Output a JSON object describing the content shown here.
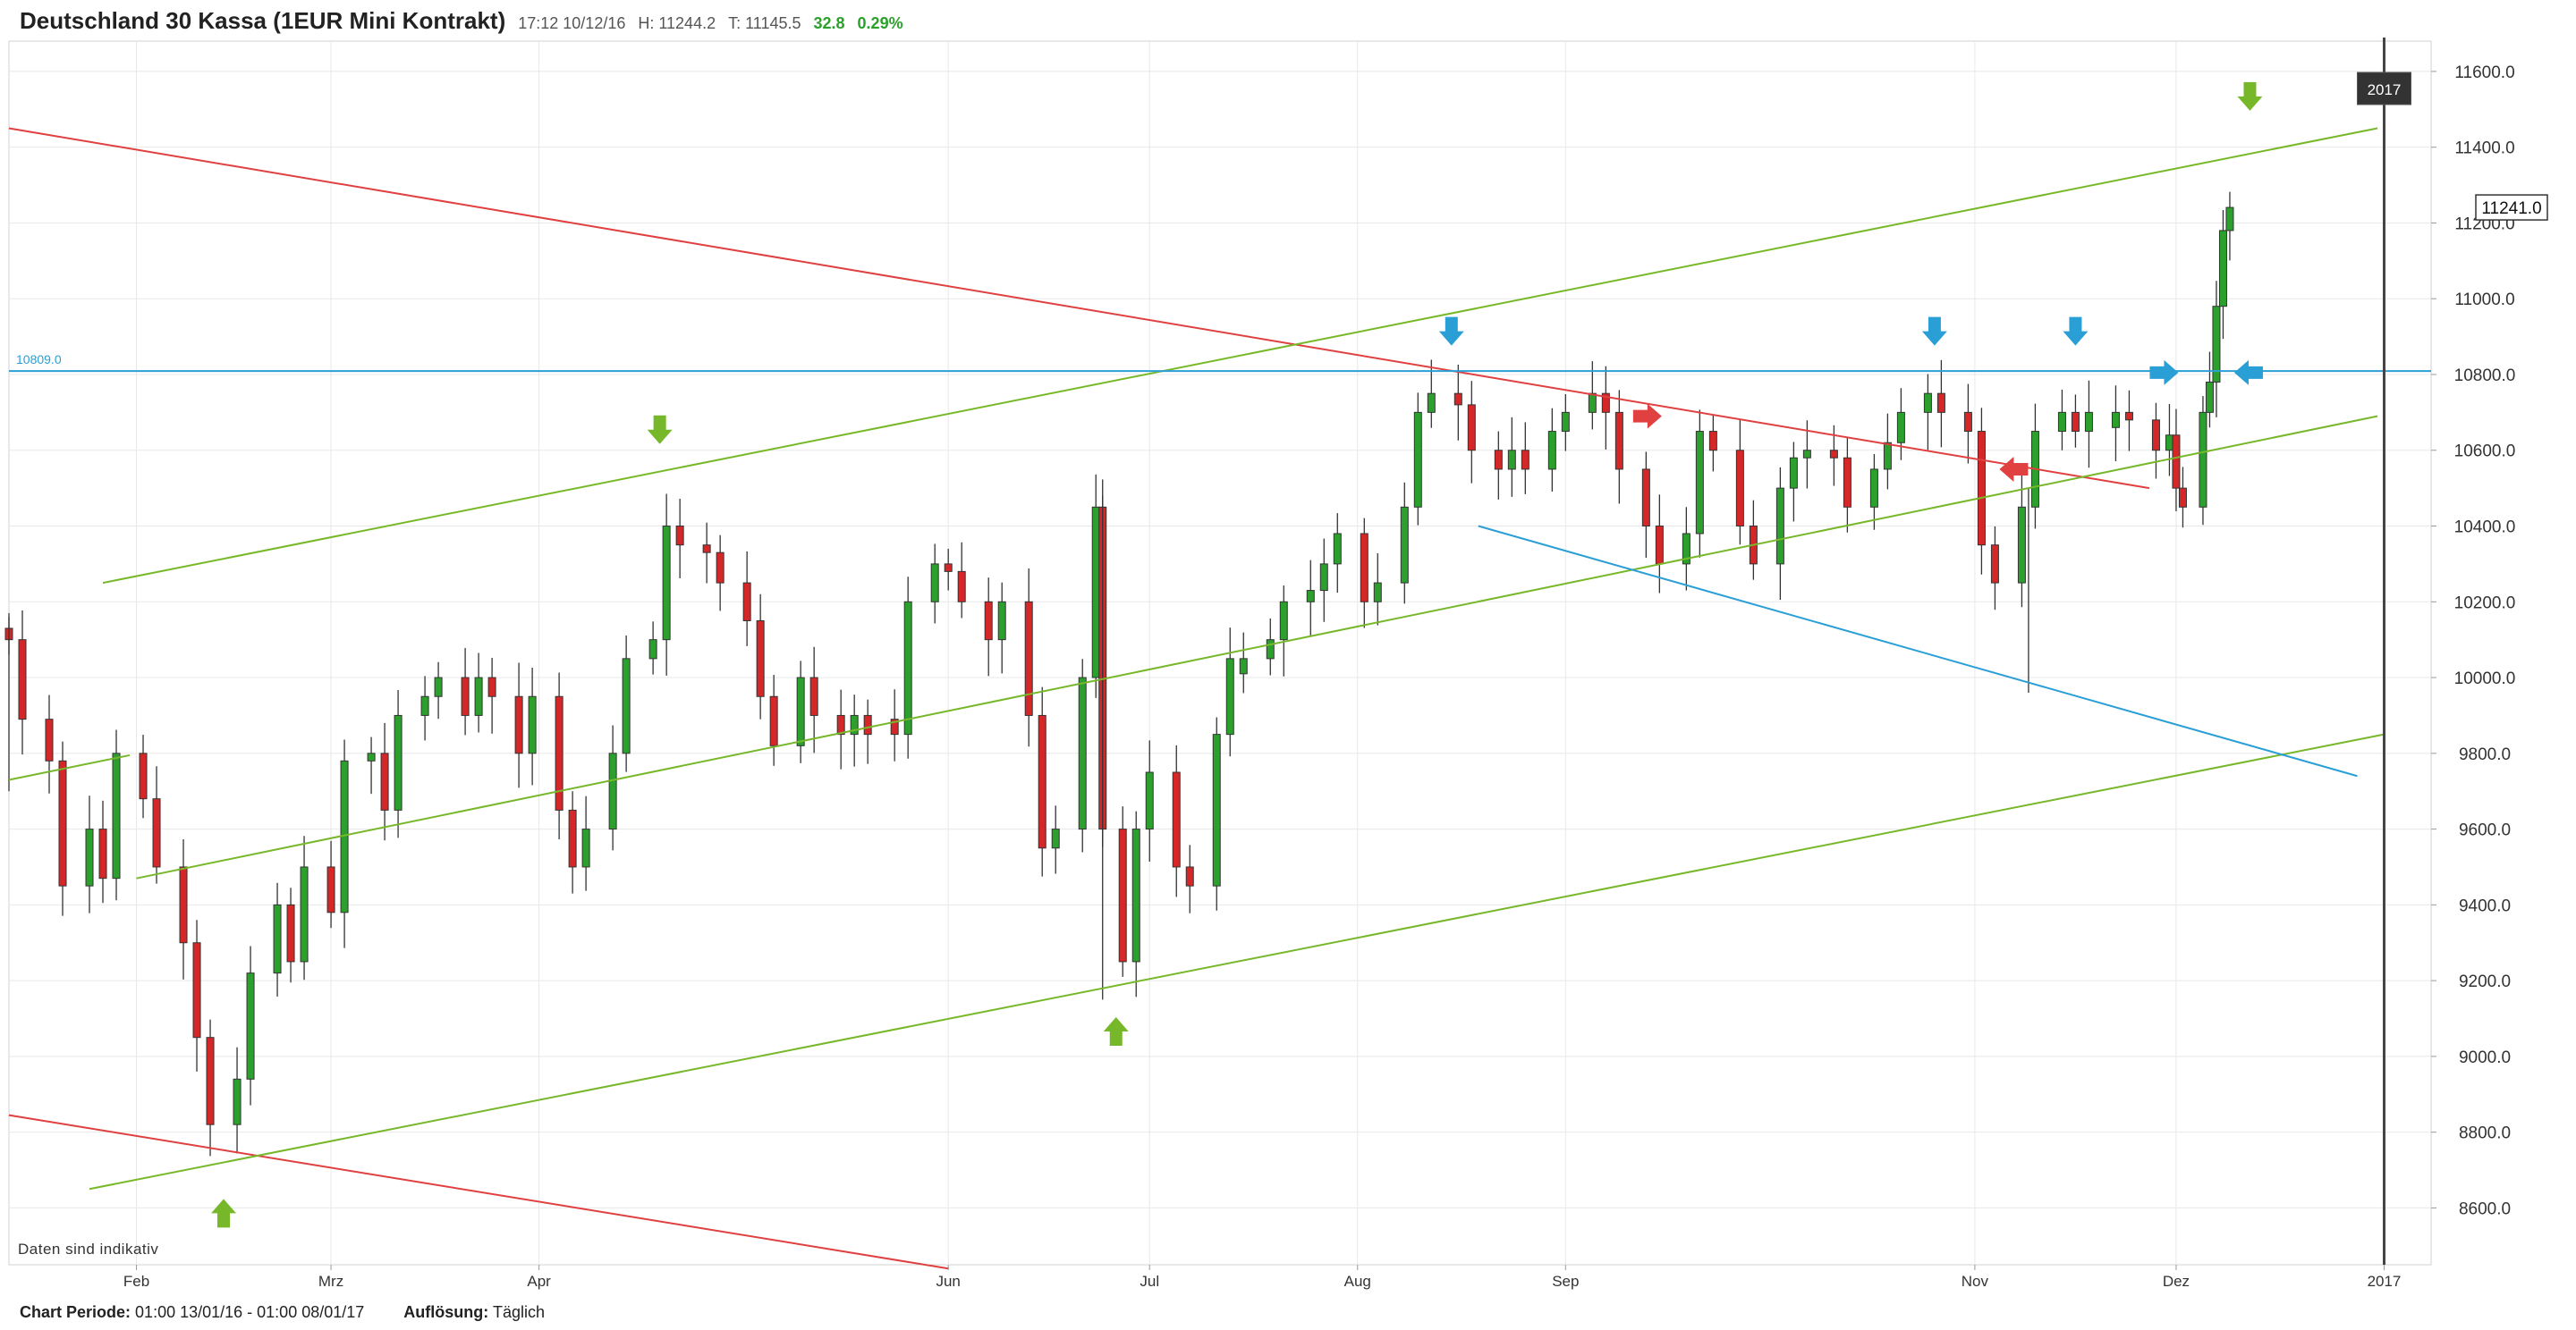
{
  "header": {
    "title": "Deutschland 30 Kassa (1EUR Mini Kontrakt)",
    "time": "17:12 10/12/16",
    "high": "H: 11244.2",
    "low": "T: 11145.5",
    "change_abs": "32.8",
    "change_pct": "0.29%"
  },
  "footer": {
    "period_label": "Chart Periode:",
    "period_value": "01:00 13/01/16 - 01:00 08/01/17",
    "resolution_label": "Auflösung:",
    "resolution_value": "Täglich"
  },
  "note": "Daten sind indikativ",
  "colors": {
    "up": "#2ca02c",
    "down": "#d62728",
    "green_line": "#77b82a",
    "red_line": "#e04040",
    "blue_line": "#2a9fd6",
    "grid": "#e8e8e8"
  },
  "chart_data": {
    "type": "candlestick",
    "title": "Deutschland 30 Kassa (1EUR Mini Kontrakt)",
    "ylim": [
      8450,
      11680
    ],
    "y_ticks": [
      "8600.0",
      "8800.0",
      "9000.0",
      "9200.0",
      "9400.0",
      "9600.0",
      "9800.0",
      "10000.0",
      "10200.0",
      "10400.0",
      "10600.0",
      "10800.0",
      "11000.0",
      "11200.0",
      "11400.0",
      "11600.0"
    ],
    "x_tick_labels": [
      "Feb",
      "Mrz",
      "Apr",
      "Jun",
      "Jul",
      "Aug",
      "Sep",
      "Nov",
      "Dez",
      "2017"
    ],
    "x_ticks": [
      "2016-02-01",
      "2016-03-01",
      "2016-04-01",
      "2016-06-01",
      "2016-07-01",
      "2016-08-01",
      "2016-09-01",
      "2016-11-01",
      "2016-12-01",
      "2017-01-01"
    ],
    "xlim": [
      "2016-01-13",
      "2017-01-08"
    ],
    "last_price_label": "11241.0",
    "hline": {
      "value": 10809,
      "label": "10809.0"
    },
    "year_marker": {
      "date": "2017-01-01",
      "label": "2017"
    },
    "closes": [
      [
        "2016-01-13",
        10100
      ],
      [
        "2016-01-15",
        9890
      ],
      [
        "2016-01-19",
        9780
      ],
      [
        "2016-01-21",
        9450
      ],
      [
        "2016-01-25",
        9600
      ],
      [
        "2016-01-27",
        9470
      ],
      [
        "2016-01-29",
        9800
      ],
      [
        "2016-02-02",
        9680
      ],
      [
        "2016-02-04",
        9500
      ],
      [
        "2016-02-08",
        9300
      ],
      [
        "2016-02-10",
        9050
      ],
      [
        "2016-02-12",
        8820
      ],
      [
        "2016-02-16",
        8940
      ],
      [
        "2016-02-18",
        9220
      ],
      [
        "2016-02-22",
        9400
      ],
      [
        "2016-02-24",
        9250
      ],
      [
        "2016-02-26",
        9500
      ],
      [
        "2016-03-01",
        9380
      ],
      [
        "2016-03-03",
        9780
      ],
      [
        "2016-03-07",
        9800
      ],
      [
        "2016-03-09",
        9650
      ],
      [
        "2016-03-11",
        9900
      ],
      [
        "2016-03-15",
        9950
      ],
      [
        "2016-03-17",
        10000
      ],
      [
        "2016-03-21",
        9900
      ],
      [
        "2016-03-23",
        10000
      ],
      [
        "2016-03-25",
        9950
      ],
      [
        "2016-03-29",
        9800
      ],
      [
        "2016-03-31",
        9950
      ],
      [
        "2016-04-04",
        9650
      ],
      [
        "2016-04-06",
        9500
      ],
      [
        "2016-04-08",
        9600
      ],
      [
        "2016-04-12",
        9800
      ],
      [
        "2016-04-14",
        10050
      ],
      [
        "2016-04-18",
        10100
      ],
      [
        "2016-04-20",
        10400
      ],
      [
        "2016-04-22",
        10350
      ],
      [
        "2016-04-26",
        10330
      ],
      [
        "2016-04-28",
        10250
      ],
      [
        "2016-05-02",
        10150
      ],
      [
        "2016-05-04",
        9950
      ],
      [
        "2016-05-06",
        9820
      ],
      [
        "2016-05-10",
        10000
      ],
      [
        "2016-05-12",
        9900
      ],
      [
        "2016-05-16",
        9850
      ],
      [
        "2016-05-18",
        9900
      ],
      [
        "2016-05-20",
        9850
      ],
      [
        "2016-05-24",
        9850
      ],
      [
        "2016-05-26",
        10200
      ],
      [
        "2016-05-30",
        10300
      ],
      [
        "2016-06-01",
        10280
      ],
      [
        "2016-06-03",
        10200
      ],
      [
        "2016-06-07",
        10100
      ],
      [
        "2016-06-09",
        10200
      ],
      [
        "2016-06-13",
        9900
      ],
      [
        "2016-06-15",
        9550
      ],
      [
        "2016-06-17",
        9600
      ],
      [
        "2016-06-21",
        10000
      ],
      [
        "2016-06-23",
        10450
      ],
      [
        "2016-06-24",
        9600
      ],
      [
        "2016-06-27",
        9250
      ],
      [
        "2016-06-29",
        9600
      ],
      [
        "2016-07-01",
        9750
      ],
      [
        "2016-07-05",
        9500
      ],
      [
        "2016-07-07",
        9450
      ],
      [
        "2016-07-11",
        9850
      ],
      [
        "2016-07-13",
        10050
      ],
      [
        "2016-07-15",
        10050
      ],
      [
        "2016-07-19",
        10100
      ],
      [
        "2016-07-21",
        10200
      ],
      [
        "2016-07-25",
        10230
      ],
      [
        "2016-07-27",
        10300
      ],
      [
        "2016-07-29",
        10380
      ],
      [
        "2016-08-02",
        10200
      ],
      [
        "2016-08-04",
        10250
      ],
      [
        "2016-08-08",
        10450
      ],
      [
        "2016-08-10",
        10700
      ],
      [
        "2016-08-12",
        10750
      ],
      [
        "2016-08-16",
        10720
      ],
      [
        "2016-08-18",
        10600
      ],
      [
        "2016-08-22",
        10550
      ],
      [
        "2016-08-24",
        10600
      ],
      [
        "2016-08-26",
        10550
      ],
      [
        "2016-08-30",
        10650
      ],
      [
        "2016-09-01",
        10700
      ],
      [
        "2016-09-05",
        10750
      ],
      [
        "2016-09-07",
        10700
      ],
      [
        "2016-09-09",
        10550
      ],
      [
        "2016-09-13",
        10400
      ],
      [
        "2016-09-15",
        10300
      ],
      [
        "2016-09-19",
        10380
      ],
      [
        "2016-09-21",
        10650
      ],
      [
        "2016-09-23",
        10600
      ],
      [
        "2016-09-27",
        10400
      ],
      [
        "2016-09-29",
        10300
      ],
      [
        "2016-10-03",
        10500
      ],
      [
        "2016-10-05",
        10580
      ],
      [
        "2016-10-07",
        10600
      ],
      [
        "2016-10-11",
        10580
      ],
      [
        "2016-10-13",
        10450
      ],
      [
        "2016-10-17",
        10550
      ],
      [
        "2016-10-19",
        10620
      ],
      [
        "2016-10-21",
        10700
      ],
      [
        "2016-10-25",
        10750
      ],
      [
        "2016-10-27",
        10700
      ],
      [
        "2016-10-31",
        10650
      ],
      [
        "2016-11-02",
        10350
      ],
      [
        "2016-11-04",
        10250
      ],
      [
        "2016-11-08",
        10450
      ],
      [
        "2016-11-10",
        10650
      ],
      [
        "2016-11-14",
        10700
      ],
      [
        "2016-11-16",
        10650
      ],
      [
        "2016-11-18",
        10700
      ],
      [
        "2016-11-22",
        10700
      ],
      [
        "2016-11-24",
        10680
      ],
      [
        "2016-11-28",
        10600
      ],
      [
        "2016-11-30",
        10640
      ],
      [
        "2016-12-01",
        10500
      ],
      [
        "2016-12-02",
        10450
      ],
      [
        "2016-12-05",
        10700
      ],
      [
        "2016-12-06",
        10780
      ],
      [
        "2016-12-07",
        10980
      ],
      [
        "2016-12-08",
        11180
      ],
      [
        "2016-12-09",
        11241
      ]
    ],
    "trend_lines": [
      {
        "color": "red",
        "from": [
          "2016-01-13",
          11450
        ],
        "to": [
          "2016-11-27",
          10500
        ]
      },
      {
        "color": "red",
        "from": [
          "2016-01-13",
          8845
        ],
        "to": [
          "2016-06-01",
          8440
        ]
      },
      {
        "color": "green",
        "from": [
          "2016-01-27",
          10250
        ],
        "to": [
          "2016-12-31",
          11450
        ]
      },
      {
        "color": "green",
        "from": [
          "2016-01-13",
          9730
        ],
        "to": [
          "2016-01-31",
          9795
        ]
      },
      {
        "color": "green",
        "from": [
          "2016-02-01",
          9470
        ],
        "to": [
          "2016-12-31",
          10690
        ]
      },
      {
        "color": "green",
        "from": [
          "2016-01-25",
          8650
        ],
        "to": [
          "2017-01-01",
          9850
        ]
      },
      {
        "color": "blue",
        "from": [
          "2016-08-19",
          10400
        ],
        "to": [
          "2016-12-28",
          9740
        ]
      }
    ],
    "arrows": [
      {
        "color": "green",
        "dir": "up",
        "date": "2016-02-14",
        "value": 8600
      },
      {
        "color": "green",
        "dir": "down",
        "date": "2016-04-19",
        "value": 10640
      },
      {
        "color": "green",
        "dir": "up",
        "date": "2016-06-26",
        "value": 9080
      },
      {
        "color": "green",
        "dir": "down",
        "date": "2016-12-12",
        "value": 11520
      },
      {
        "color": "blue",
        "dir": "down",
        "date": "2016-08-15",
        "value": 10900
      },
      {
        "color": "blue",
        "dir": "down",
        "date": "2016-10-26",
        "value": 10900
      },
      {
        "color": "blue",
        "dir": "down",
        "date": "2016-11-16",
        "value": 10900
      },
      {
        "color": "blue",
        "dir": "right",
        "date": "2016-11-30",
        "value": 10805
      },
      {
        "color": "blue",
        "dir": "left",
        "date": "2016-12-11",
        "value": 10805
      },
      {
        "color": "red",
        "dir": "right",
        "date": "2016-09-14",
        "value": 10690
      },
      {
        "color": "red",
        "dir": "left",
        "date": "2016-11-06",
        "value": 10550
      }
    ]
  }
}
